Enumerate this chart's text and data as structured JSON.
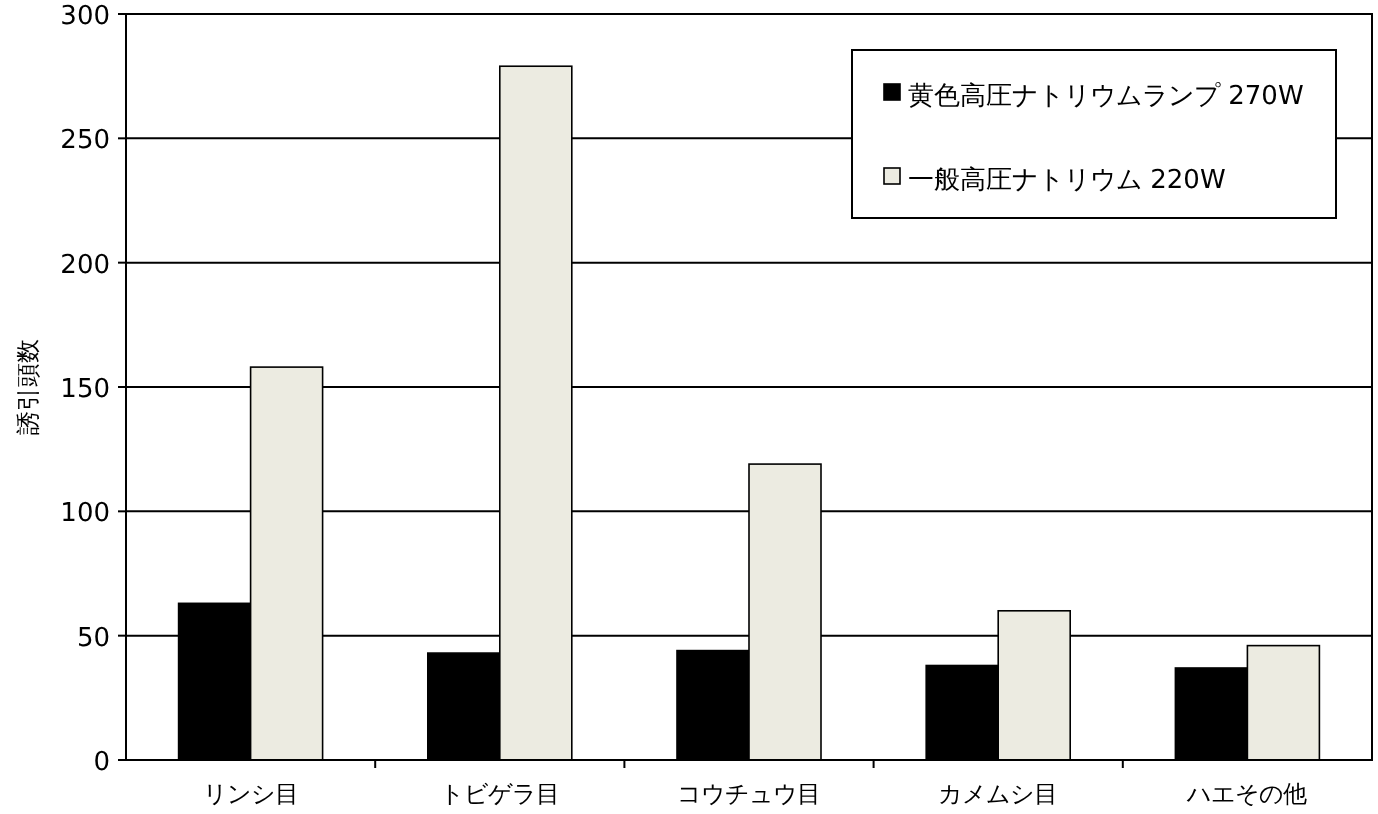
{
  "chart_data": {
    "type": "bar",
    "ylabel": "誘引頭数",
    "categories": [
      "リンシ目",
      "トビゲラ目",
      "コウチュウ目",
      "カメムシ目",
      "ハエその他"
    ],
    "series": [
      {
        "name": "黄色高圧ナトリウムランプ 270W",
        "color": "#000000",
        "values": [
          63,
          43,
          44,
          38,
          37
        ]
      },
      {
        "name": "一般高圧ナトリウム 220W",
        "color": "#ecebe1",
        "values": [
          158,
          279,
          119,
          60,
          46
        ]
      }
    ],
    "ylim": [
      0,
      300
    ],
    "yticks": [
      0,
      50,
      100,
      150,
      200,
      250,
      300
    ],
    "grid": "y",
    "legend": "top right"
  }
}
